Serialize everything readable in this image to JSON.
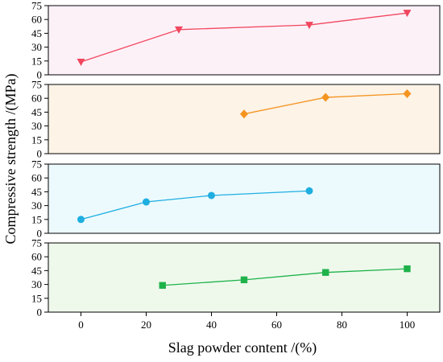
{
  "chart_data": {
    "type": "line",
    "layout": "stacked-panels",
    "shared_x_axis": true,
    "xlabel": "Slag powder content /(%)",
    "ylabel": "Compressive strength /(MPa)",
    "xlim": [
      -10,
      110
    ],
    "xticks": [
      0,
      20,
      40,
      60,
      80,
      100
    ],
    "ylim": [
      0,
      75
    ],
    "yticks": [
      0,
      15,
      30,
      45,
      60,
      75
    ],
    "grid": false,
    "legend": "none",
    "panels": [
      {
        "background": "#fdf1f8",
        "color": "#f2475f",
        "marker": "triangle-down",
        "x": [
          0,
          30,
          70,
          100
        ],
        "y": [
          14,
          49,
          54,
          67
        ]
      },
      {
        "background": "#fdf3e7",
        "color": "#f5941f",
        "marker": "diamond",
        "x": [
          50,
          75,
          100
        ],
        "y": [
          43,
          61,
          65
        ]
      },
      {
        "background": "#ecfafe",
        "color": "#1faee0",
        "marker": "circle",
        "x": [
          0,
          20,
          40,
          70
        ],
        "y": [
          15,
          34,
          41,
          46
        ]
      },
      {
        "background": "#eef9ec",
        "color": "#1fb24a",
        "marker": "square",
        "x": [
          25,
          50,
          75,
          100
        ],
        "y": [
          29,
          35,
          43,
          47
        ]
      }
    ]
  }
}
